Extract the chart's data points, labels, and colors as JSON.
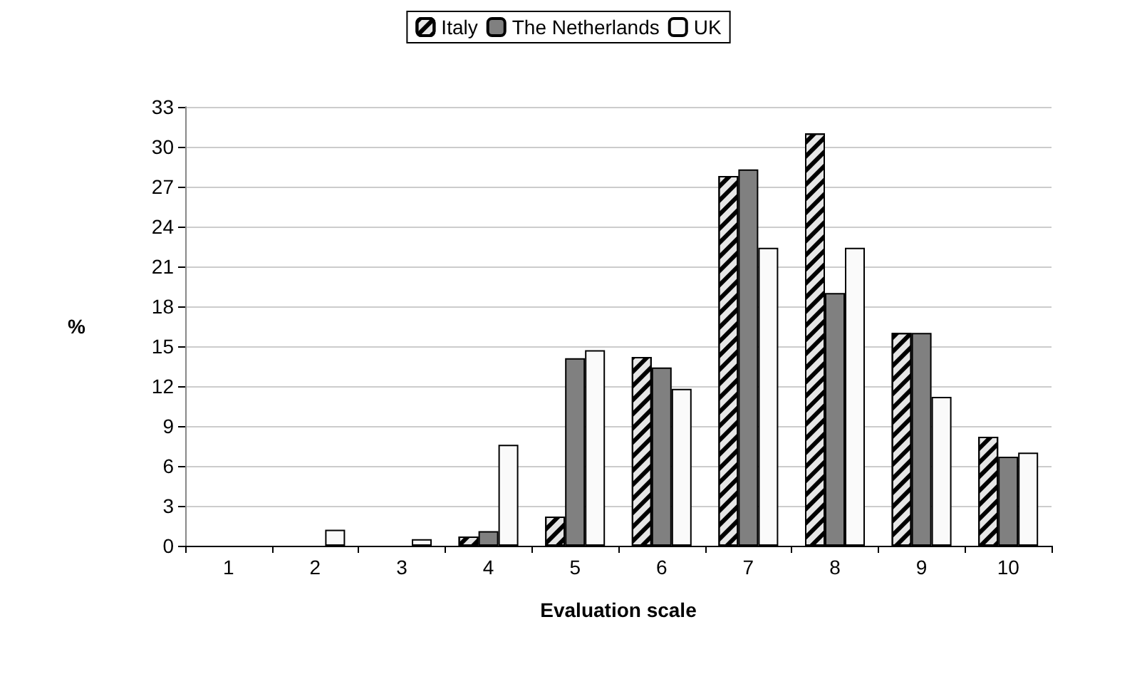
{
  "chart_data": {
    "type": "bar",
    "xlabel": "Evaluation scale",
    "ylabel": "%",
    "categories": [
      "1",
      "2",
      "3",
      "4",
      "5",
      "6",
      "7",
      "8",
      "9",
      "10"
    ],
    "series": [
      {
        "name": "Italy",
        "color": "#e6e6e6",
        "values": [
          0,
          0,
          0,
          0.7,
          2.2,
          14.2,
          27.8,
          31,
          16,
          8.2
        ]
      },
      {
        "name": "The Netherlands",
        "color": "#808080",
        "values": [
          0,
          0,
          0,
          1.1,
          14.1,
          13.4,
          28.3,
          19,
          16,
          6.7
        ]
      },
      {
        "name": "UK",
        "color": "#fafafa",
        "values": [
          0,
          1.2,
          0.5,
          7.6,
          14.7,
          11.8,
          22.4,
          22.4,
          11.2,
          7
        ]
      }
    ],
    "ylim": [
      0,
      33
    ],
    "yticks": [
      0,
      3,
      6,
      9,
      12,
      15,
      18,
      21,
      24,
      27,
      30,
      33
    ],
    "grid": "y",
    "legend": "top"
  }
}
